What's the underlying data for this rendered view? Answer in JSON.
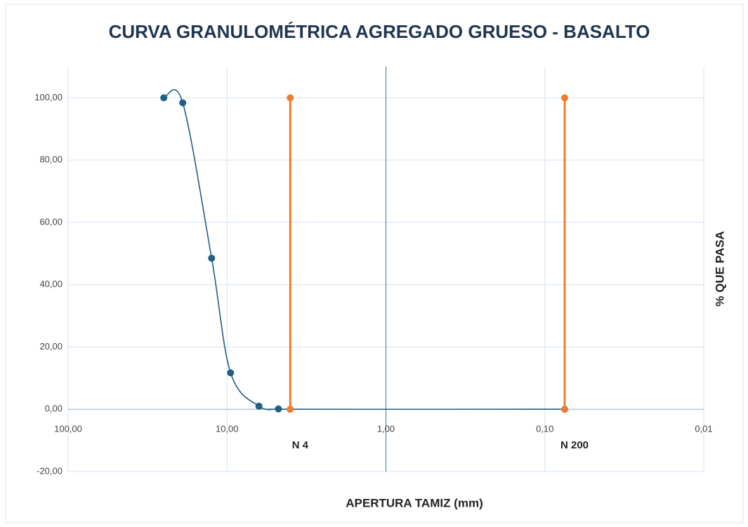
{
  "chart_data": {
    "type": "scatter",
    "title": "CURVA GRANULOMÉTRICA AGREGADO GRUESO - BASALTO",
    "xlabel": "APERTURA TAMIZ (mm)",
    "ylabel": "% QUE PASA",
    "xscale": "log",
    "xreversed": true,
    "xlim": [
      100,
      0.01
    ],
    "ylim": [
      -20,
      110
    ],
    "xticks": [
      {
        "value": 100,
        "label": "100,00"
      },
      {
        "value": 10,
        "label": "10,00"
      },
      {
        "value": 1,
        "label": "1,00"
      },
      {
        "value": 0.1,
        "label": "0,10"
      },
      {
        "value": 0.01,
        "label": "0,01"
      }
    ],
    "yticks": [
      {
        "value": -20,
        "label": "-20,00"
      },
      {
        "value": 0,
        "label": "0,00"
      },
      {
        "value": 20,
        "label": "20,00"
      },
      {
        "value": 40,
        "label": "40,00"
      },
      {
        "value": 60,
        "label": "60,00"
      },
      {
        "value": 80,
        "label": "80,00"
      },
      {
        "value": 100,
        "label": "100,00"
      }
    ],
    "grid": true,
    "yaxis_cross": 1,
    "series": [
      {
        "color": "#215f83",
        "smooth": true,
        "x": [
          25,
          19,
          12.5,
          9.5,
          6.3,
          4.75,
          4,
          0.075
        ],
        "values": [
          100,
          98.4,
          48.5,
          11.7,
          1.0,
          0.1,
          0,
          0
        ]
      },
      {
        "color": "#ed7d31",
        "smooth": false,
        "x": [
          4,
          4
        ],
        "values": [
          0,
          100
        ]
      },
      {
        "color": "#ed7d31",
        "smooth": false,
        "x": [
          0.075,
          0.075
        ],
        "values": [
          0,
          100
        ]
      }
    ],
    "annotations": [
      {
        "text": "N 4",
        "x": 4
      },
      {
        "text": "N 200",
        "x": 0.075
      }
    ]
  }
}
